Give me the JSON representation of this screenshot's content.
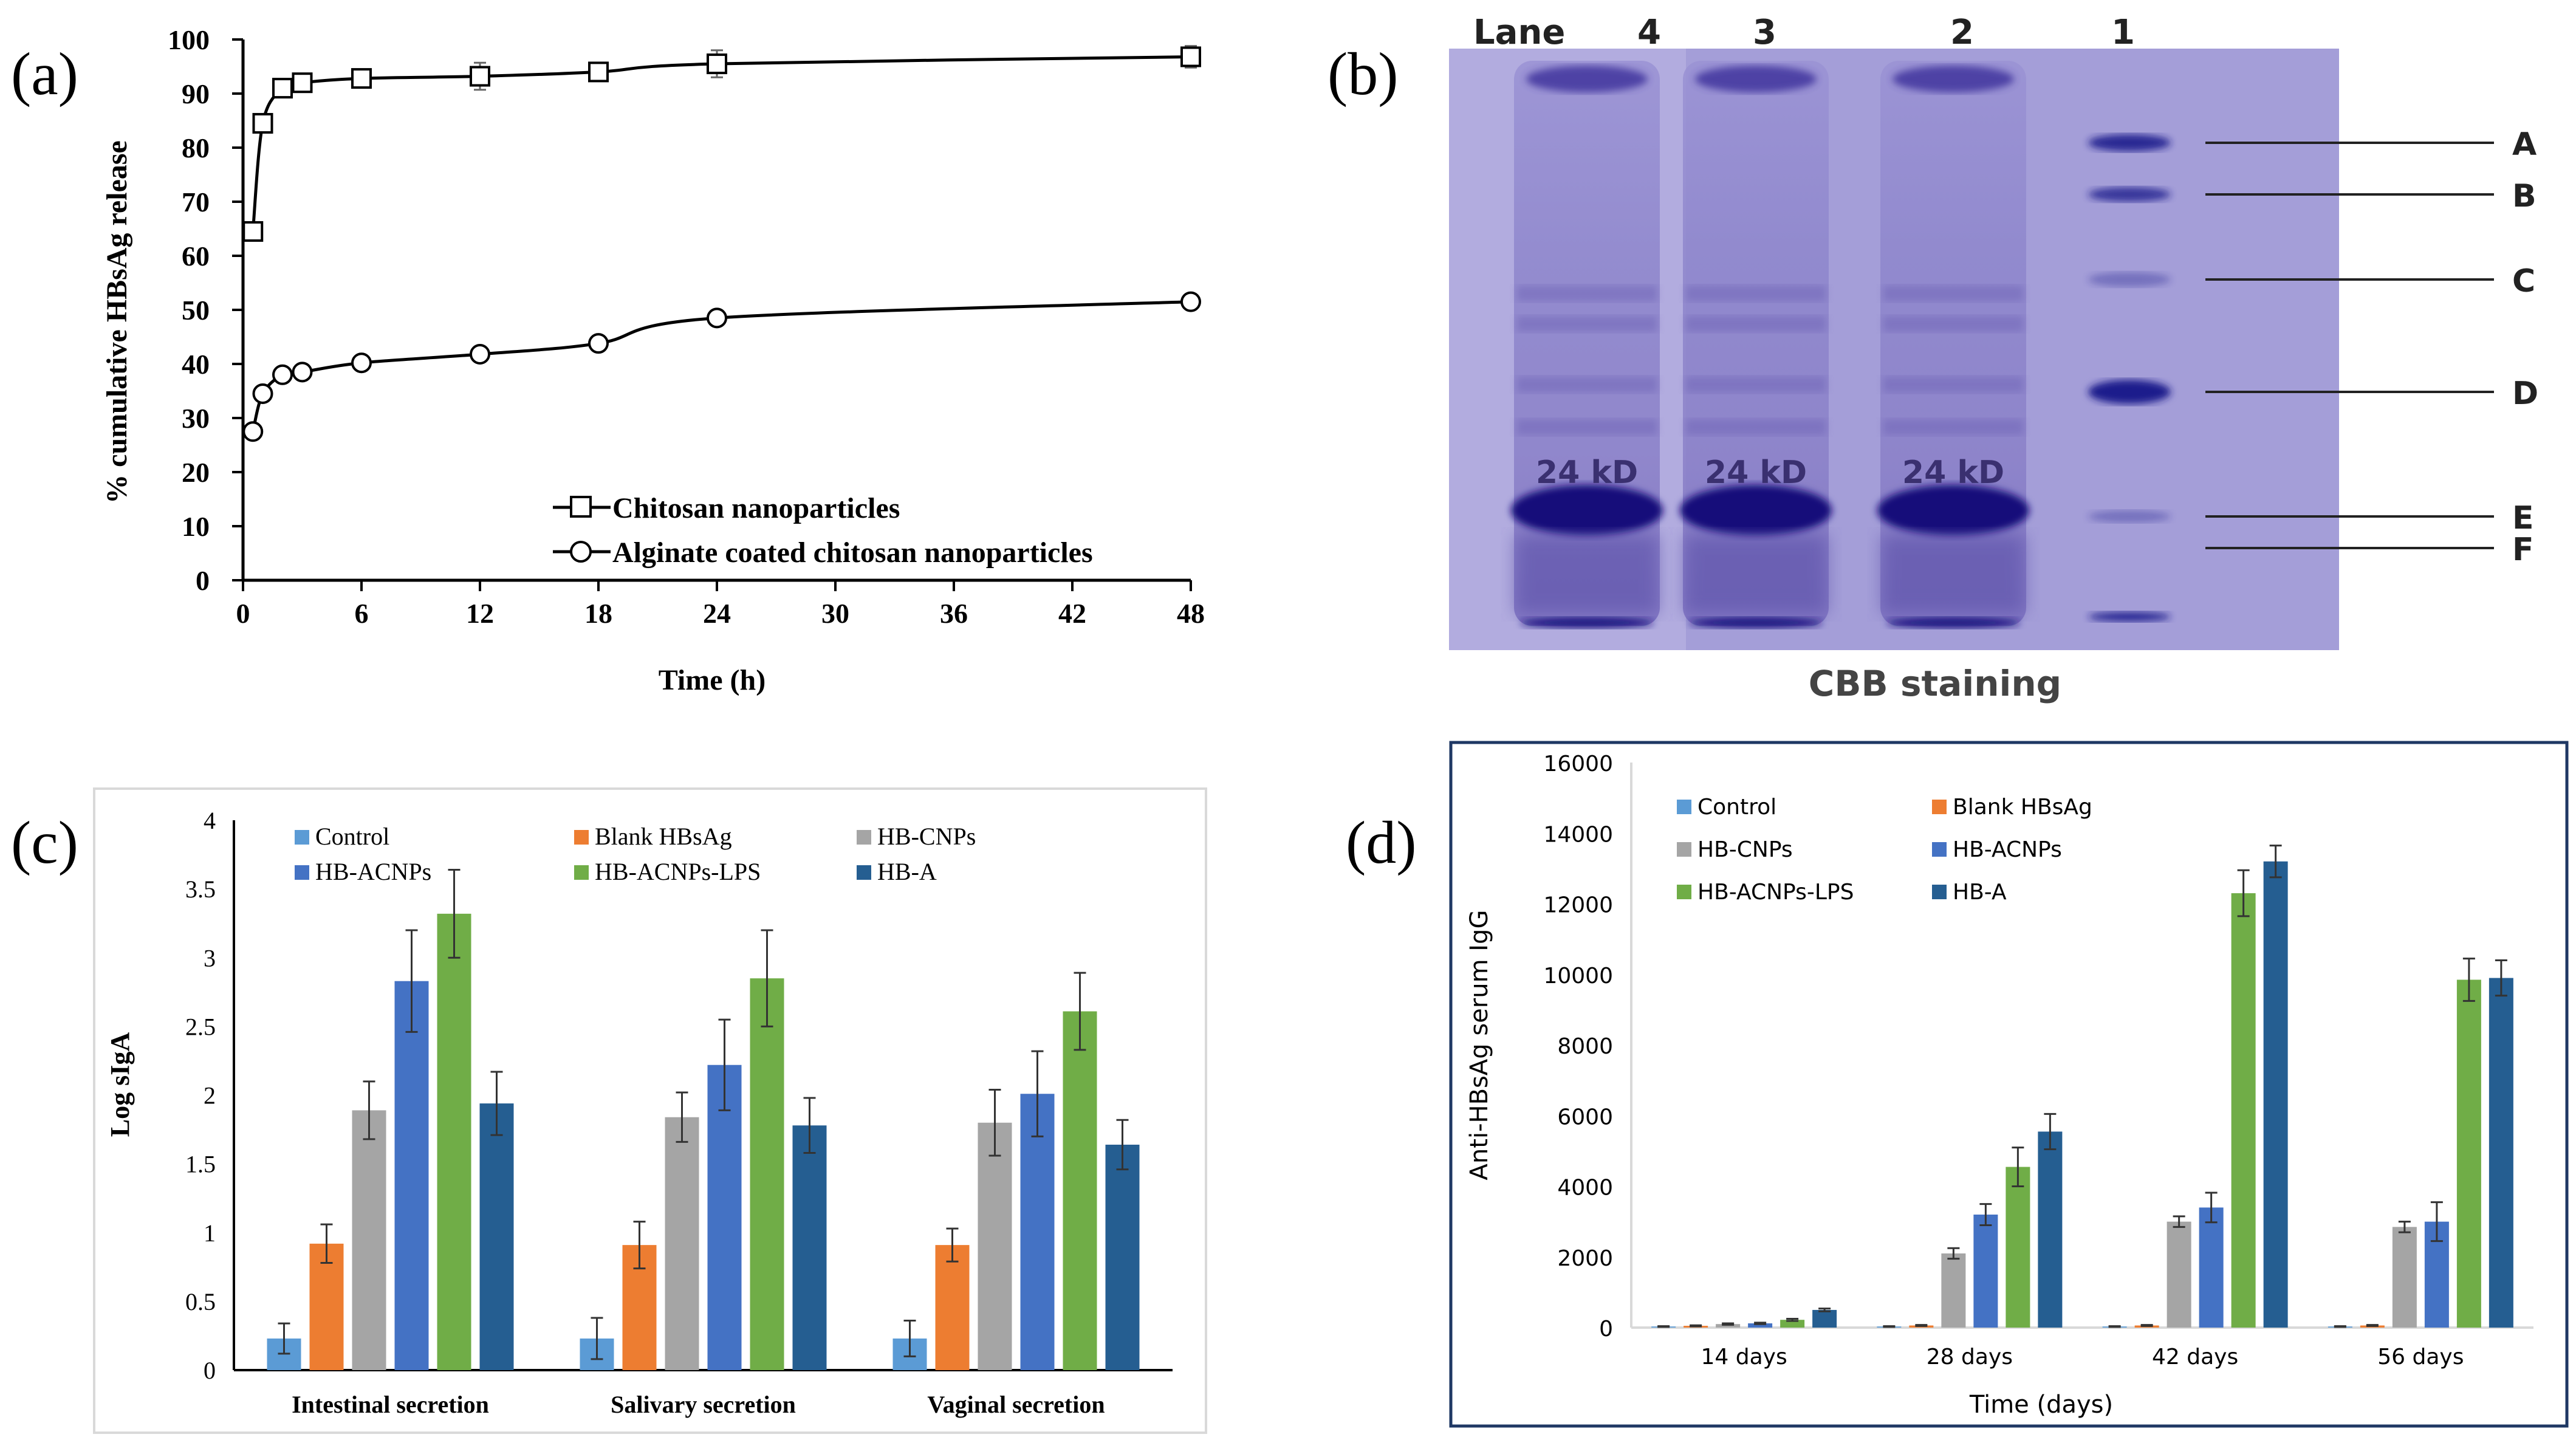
{
  "panel_labels": {
    "a": "(a)",
    "b": "(b)",
    "c": "(c)",
    "d": "(d)"
  },
  "colors": {
    "control": "#5b9bd5",
    "blank": "#ed7d31",
    "cnps": "#a5a5a5",
    "acnps": "#4472c4",
    "lps": "#70ad47",
    "hba": "#255e91",
    "gel_bg": "#a9a3dc",
    "gel_band": "#1e1a8c"
  },
  "chart_data": [
    {
      "type": "line",
      "id": "a",
      "xlabel": "Time (h)",
      "ylabel": "% cumulative HBsAg release",
      "xlim": [
        0,
        48
      ],
      "ylim": [
        0,
        100
      ],
      "x_ticks": [
        0,
        6,
        12,
        18,
        24,
        30,
        36,
        42,
        48
      ],
      "y_ticks": [
        0,
        10,
        20,
        30,
        40,
        50,
        60,
        70,
        80,
        90,
        100
      ],
      "legend_position": "bottom-right",
      "grid": false,
      "series": [
        {
          "name": "Chitosan nanoparticles",
          "marker": "square",
          "x": [
            0.5,
            1,
            2,
            3,
            6,
            12,
            18,
            24,
            48
          ],
          "y": [
            64.5,
            84.5,
            91,
            92,
            92.8,
            93.2,
            94,
            95.5,
            96.8
          ],
          "err": [
            0,
            1,
            1.2,
            1.5,
            1,
            2.5,
            1,
            2.5,
            2
          ]
        },
        {
          "name": "Alginate coated chitosan nanoparticles",
          "marker": "circle",
          "x": [
            0.5,
            1,
            2,
            3,
            6,
            12,
            18,
            24,
            48
          ],
          "y": [
            27.5,
            34.5,
            38,
            38.5,
            40.2,
            41.8,
            43.8,
            48.5,
            51.5
          ],
          "err": [
            0,
            0,
            0,
            0,
            0,
            0,
            0,
            0,
            0
          ]
        }
      ]
    },
    {
      "type": "bar",
      "id": "c",
      "xlabel": "",
      "ylabel": "Log sIgA",
      "ylim": [
        0,
        4
      ],
      "y_ticks": [
        0,
        0.5,
        1,
        1.5,
        2,
        2.5,
        3,
        3.5,
        4
      ],
      "y_tick_labels": [
        "0",
        "0.5",
        "1",
        "1.5",
        "2",
        "2.5",
        "3",
        "3.5",
        "4"
      ],
      "legend_position": "top",
      "grid": false,
      "categories": [
        "Intestinal secretion",
        "Salivary secretion",
        "Vaginal secretion"
      ],
      "series": [
        {
          "name": "Control",
          "color_key": "control",
          "values": [
            0.23,
            0.23,
            0.23
          ],
          "err": [
            0.11,
            0.15,
            0.13
          ]
        },
        {
          "name": "Blank HBsAg",
          "color_key": "blank",
          "values": [
            0.92,
            0.91,
            0.91
          ],
          "err": [
            0.14,
            0.17,
            0.12
          ]
        },
        {
          "name": "HB-CNPs",
          "color_key": "cnps",
          "values": [
            1.89,
            1.84,
            1.8
          ],
          "err": [
            0.21,
            0.18,
            0.24
          ]
        },
        {
          "name": "HB-ACNPs",
          "color_key": "acnps",
          "values": [
            2.83,
            2.22,
            2.01
          ],
          "err": [
            0.37,
            0.33,
            0.31
          ]
        },
        {
          "name": "HB-ACNPs-LPS",
          "color_key": "lps",
          "values": [
            3.32,
            2.85,
            2.61
          ],
          "err": [
            0.32,
            0.35,
            0.28
          ]
        },
        {
          "name": "HB-A",
          "color_key": "hba",
          "values": [
            1.94,
            1.78,
            1.64
          ],
          "err": [
            0.23,
            0.2,
            0.18
          ]
        }
      ]
    },
    {
      "type": "bar",
      "id": "d",
      "xlabel": "Time (days)",
      "ylabel": "Anti-HBsAg serum IgG",
      "ylim": [
        0,
        16000
      ],
      "y_ticks": [
        0,
        2000,
        4000,
        6000,
        8000,
        10000,
        12000,
        14000,
        16000
      ],
      "y_tick_labels": [
        "0",
        "2000",
        "4000",
        "6000",
        "8000",
        "10000",
        "12000",
        "14000",
        "16000"
      ],
      "legend_position": "top-left",
      "grid": false,
      "categories": [
        "14 days",
        "28 days",
        "42 days",
        "56 days"
      ],
      "series": [
        {
          "name": "Control",
          "color_key": "control",
          "values": [
            30,
            30,
            30,
            30
          ],
          "err": [
            10,
            10,
            10,
            10
          ]
        },
        {
          "name": "Blank HBsAg",
          "color_key": "blank",
          "values": [
            50,
            60,
            60,
            60
          ],
          "err": [
            15,
            15,
            15,
            15
          ]
        },
        {
          "name": "HB-CNPs",
          "color_key": "cnps",
          "values": [
            100,
            2100,
            3000,
            2850
          ],
          "err": [
            20,
            150,
            150,
            150
          ]
        },
        {
          "name": "HB-ACNPs",
          "color_key": "acnps",
          "values": [
            120,
            3200,
            3400,
            3000
          ],
          "err": [
            20,
            300,
            420,
            550
          ]
        },
        {
          "name": "HB-ACNPs-LPS",
          "color_key": "lps",
          "values": [
            220,
            4550,
            12300,
            9850
          ],
          "err": [
            30,
            550,
            650,
            600
          ]
        },
        {
          "name": "HB-A",
          "color_key": "hba",
          "values": [
            500,
            5550,
            13200,
            9900
          ],
          "err": [
            40,
            500,
            450,
            500
          ]
        }
      ]
    }
  ],
  "gel": {
    "lane_header": "Lane",
    "lanes": [
      "4",
      "3",
      "2",
      "1"
    ],
    "band_label": "24 kD",
    "marker_labels": [
      "A",
      "B",
      "C",
      "D",
      "E",
      "F"
    ],
    "caption": "CBB staining"
  }
}
